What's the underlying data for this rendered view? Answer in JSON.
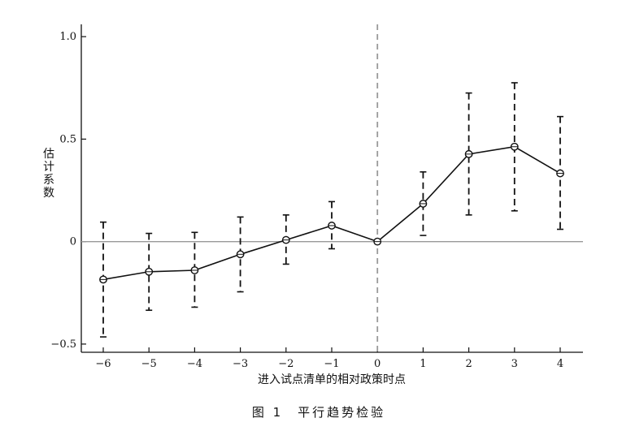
{
  "chart_data": {
    "type": "line",
    "title": "",
    "caption": "图 1　平行趋势检验",
    "xlabel": "进入试点清单的相对政策时点",
    "ylabel": "估计系数",
    "categories": [
      "-6",
      "-5",
      "-4",
      "-3",
      "-2",
      "-1",
      "0",
      "1",
      "2",
      "3",
      "4"
    ],
    "series": [
      {
        "values": [
          -0.185,
          -0.147,
          -0.14,
          -0.062,
          0.008,
          0.078,
          0.0,
          0.185,
          0.427,
          0.463,
          0.333
        ],
        "ci_lower": [
          -0.465,
          -0.335,
          -0.32,
          -0.245,
          -0.11,
          -0.035,
          0.0,
          0.03,
          0.13,
          0.15,
          0.06
        ],
        "ci_upper": [
          0.095,
          0.04,
          0.045,
          0.12,
          0.13,
          0.195,
          0.0,
          0.34,
          0.725,
          0.775,
          0.61
        ]
      }
    ],
    "yticks": [
      -0.5,
      0,
      0.5,
      1.0
    ],
    "ytick_labels": [
      "−0.5",
      "0",
      "0.5",
      "1.0"
    ],
    "ylim": [
      -0.54,
      1.06
    ],
    "reference_line_x": "0",
    "reference_line_y": 0,
    "colors": {
      "line": "#111111",
      "zero_line": "#999999",
      "vline": "#999999"
    }
  }
}
